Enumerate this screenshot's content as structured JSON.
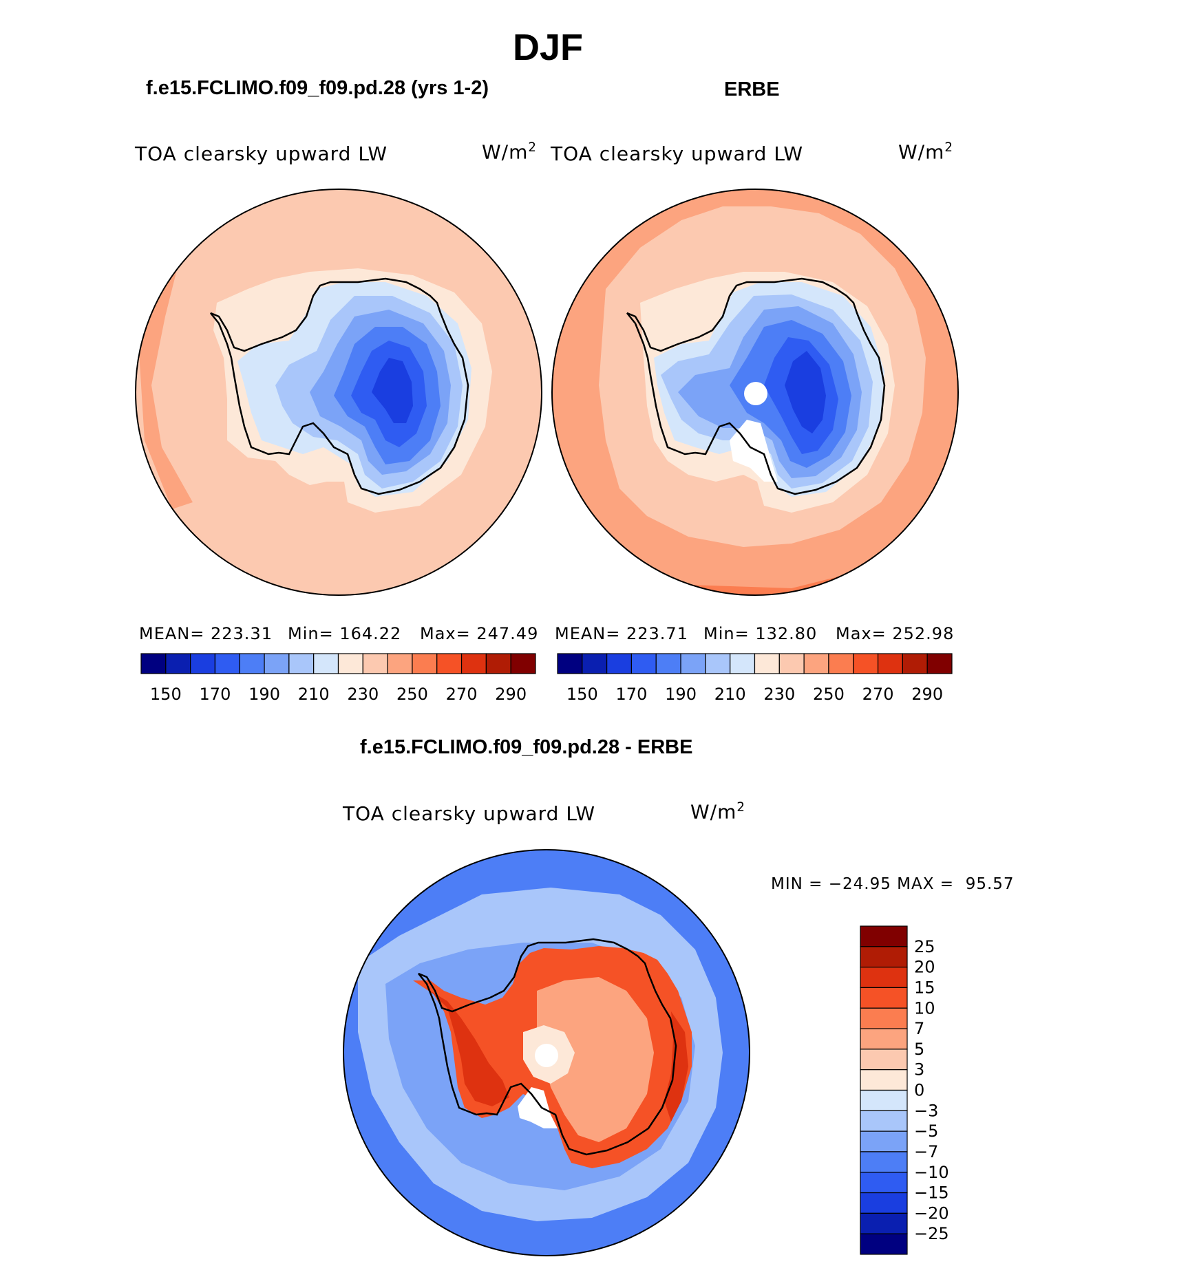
{
  "main_title": "DJF",
  "panels": [
    {
      "case_title": "f.e15.FCLIMO.f09_f09.pd.28 (yrs 1-2)",
      "variable": "TOA clearsky upward LW",
      "units_base": "W/m",
      "units_exp": "2",
      "stats": {
        "mean": "MEAN= 223.31",
        "min": "Min= 164.22",
        "max": "Max= 247.49"
      }
    },
    {
      "case_title": "ERBE",
      "variable": "TOA clearsky upward LW",
      "units_base": "W/m",
      "units_exp": "2",
      "stats": {
        "mean": "MEAN= 223.71",
        "min": "Min= 132.80",
        "max": "Max= 252.98"
      }
    }
  ],
  "diff": {
    "title": "f.e15.FCLIMO.f09_f09.pd.28 - ERBE",
    "variable": "TOA clearsky upward LW",
    "units_base": "W/m",
    "units_exp": "2",
    "minmax": "MIN = −24.95 MAX =  95.57"
  },
  "colorbar_abs": {
    "colors": [
      "#000080",
      "#0a1fb0",
      "#1a3ee0",
      "#2f5cf2",
      "#4d7ef6",
      "#7ba3f7",
      "#a9c6fa",
      "#d4e6fb",
      "#fde8d8",
      "#fcc9b0",
      "#fca47f",
      "#fb7d50",
      "#f55226",
      "#de3210",
      "#b01c05",
      "#800000"
    ],
    "labels": [
      "150",
      "170",
      "190",
      "210",
      "230",
      "250",
      "270",
      "290"
    ]
  },
  "colorbar_diff": {
    "colors": [
      "#800000",
      "#b01c05",
      "#de3210",
      "#f55226",
      "#fb7d50",
      "#fca47f",
      "#fcc9b0",
      "#fde8d8",
      "#d4e6fb",
      "#a9c6fa",
      "#7ba3f7",
      "#4d7ef6",
      "#2f5cf2",
      "#1a3ee0",
      "#0a1fb0",
      "#000080"
    ],
    "labels": [
      "25",
      "20",
      "15",
      "10",
      "7",
      "5",
      "3",
      "0",
      "−3",
      "−5",
      "−7",
      "−10",
      "−15",
      "−20",
      "−25"
    ]
  },
  "map_colors": {
    "ocean_model": "#fcc9b0",
    "ocean_obs": "#fca47f",
    "ocean_obs_outer": "#fb7d50",
    "coast_zone": "#fde8d8",
    "ice_1": "#d4e6fb",
    "ice_2": "#a9c6fa",
    "ice_3": "#7ba3f7",
    "ice_4": "#4d7ef6",
    "ice_5": "#2f5cf2",
    "ice_6": "#1a3ee0",
    "ice_7": "#0a1fb0",
    "diff_ocean": "#4d7ef6",
    "diff_ocean_light": "#a9c6fa",
    "diff_land": "#f55226",
    "diff_land_light": "#fca47f",
    "diff_land_dark": "#de3210"
  }
}
